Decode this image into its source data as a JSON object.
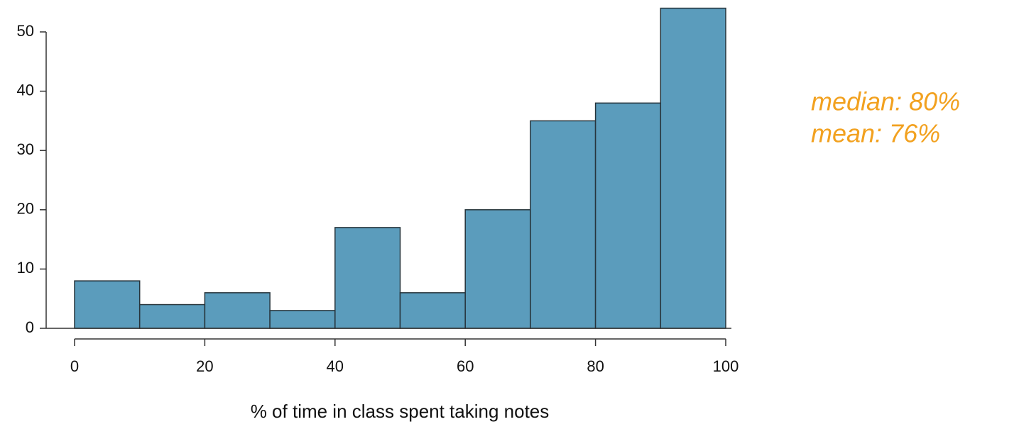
{
  "chart_data": {
    "type": "histogram",
    "x_label": "% of time in class spent taking notes",
    "bins": [
      0,
      10,
      20,
      30,
      40,
      50,
      60,
      70,
      80,
      90,
      100
    ],
    "counts": [
      8,
      4,
      6,
      3,
      17,
      6,
      20,
      35,
      38,
      54
    ],
    "color": "#5b9cbc",
    "xlim": [
      0,
      100
    ],
    "xticks": [
      0,
      20,
      40,
      60,
      80,
      100
    ],
    "ylim": [
      0,
      50
    ],
    "yticks": [
      0,
      10,
      20,
      30,
      40,
      50
    ],
    "annotations": [
      "median: 80%",
      "mean: 76%"
    ],
    "annotation_color": "#f2a11f"
  }
}
